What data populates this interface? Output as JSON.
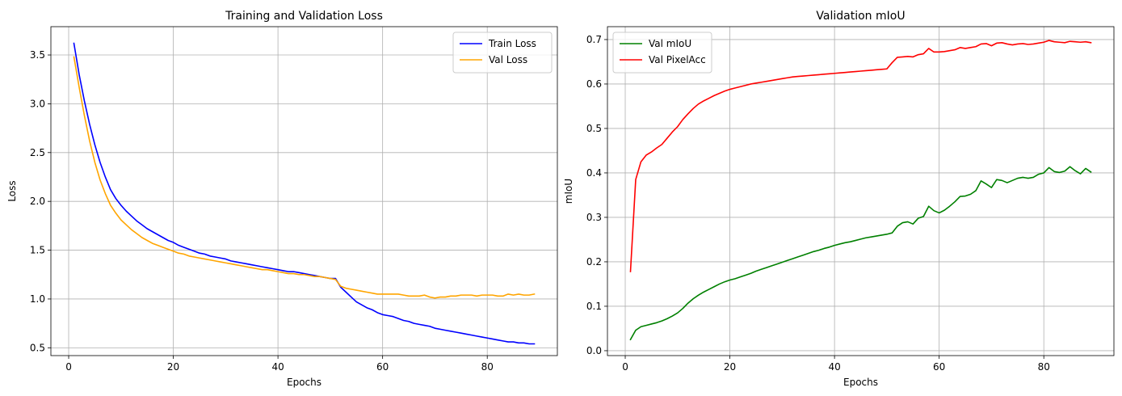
{
  "chart_data": [
    {
      "type": "line",
      "title": "Training and Validation Loss",
      "xlabel": "Epochs",
      "ylabel": "Loss",
      "xlim": [
        -3.4,
        93.4
      ],
      "ylim": [
        0.42,
        3.79
      ],
      "xticks": [
        0,
        20,
        40,
        60,
        80
      ],
      "yticks": [
        0.5,
        1.0,
        1.5,
        2.0,
        2.5,
        3.0,
        3.5
      ],
      "ytick_format": 1,
      "grid": true,
      "legend": "top-right",
      "x": [
        1,
        2,
        3,
        4,
        5,
        6,
        7,
        8,
        9,
        10,
        11,
        12,
        13,
        14,
        15,
        16,
        17,
        18,
        19,
        20,
        21,
        22,
        23,
        24,
        25,
        26,
        27,
        28,
        29,
        30,
        31,
        32,
        33,
        34,
        35,
        36,
        37,
        38,
        39,
        40,
        41,
        42,
        43,
        44,
        45,
        46,
        47,
        48,
        49,
        50,
        51,
        52,
        53,
        54,
        55,
        56,
        57,
        58,
        59,
        60,
        61,
        62,
        63,
        64,
        65,
        66,
        67,
        68,
        69,
        70,
        71,
        72,
        73,
        74,
        75,
        76,
        77,
        78,
        79,
        80,
        81,
        82,
        83,
        84,
        85,
        86,
        87,
        88,
        89
      ],
      "series": [
        {
          "name": "Train Loss",
          "color": "#0000ff",
          "values": [
            3.62,
            3.3,
            3.03,
            2.79,
            2.58,
            2.4,
            2.25,
            2.12,
            2.03,
            1.96,
            1.9,
            1.85,
            1.8,
            1.76,
            1.72,
            1.69,
            1.66,
            1.63,
            1.6,
            1.58,
            1.55,
            1.53,
            1.51,
            1.49,
            1.47,
            1.46,
            1.44,
            1.43,
            1.42,
            1.41,
            1.39,
            1.38,
            1.37,
            1.36,
            1.35,
            1.34,
            1.33,
            1.32,
            1.31,
            1.3,
            1.29,
            1.28,
            1.28,
            1.27,
            1.26,
            1.25,
            1.24,
            1.23,
            1.22,
            1.21,
            1.21,
            1.12,
            1.07,
            1.02,
            0.97,
            0.94,
            0.91,
            0.89,
            0.86,
            0.84,
            0.83,
            0.82,
            0.8,
            0.78,
            0.77,
            0.75,
            0.74,
            0.73,
            0.72,
            0.7,
            0.69,
            0.68,
            0.67,
            0.66,
            0.65,
            0.64,
            0.63,
            0.62,
            0.61,
            0.6,
            0.59,
            0.58,
            0.57,
            0.56,
            0.56,
            0.55,
            0.55,
            0.54,
            0.54
          ]
        },
        {
          "name": "Val Loss",
          "color": "#ffa500",
          "values": [
            3.48,
            3.17,
            2.88,
            2.62,
            2.4,
            2.22,
            2.08,
            1.96,
            1.88,
            1.81,
            1.76,
            1.71,
            1.67,
            1.63,
            1.6,
            1.57,
            1.55,
            1.53,
            1.51,
            1.49,
            1.47,
            1.46,
            1.44,
            1.43,
            1.42,
            1.41,
            1.4,
            1.39,
            1.38,
            1.37,
            1.36,
            1.35,
            1.34,
            1.33,
            1.32,
            1.31,
            1.3,
            1.3,
            1.29,
            1.28,
            1.27,
            1.26,
            1.26,
            1.25,
            1.25,
            1.24,
            1.23,
            1.23,
            1.22,
            1.21,
            1.2,
            1.13,
            1.11,
            1.1,
            1.09,
            1.08,
            1.07,
            1.06,
            1.05,
            1.05,
            1.05,
            1.05,
            1.05,
            1.04,
            1.03,
            1.03,
            1.03,
            1.04,
            1.02,
            1.01,
            1.02,
            1.02,
            1.03,
            1.03,
            1.04,
            1.04,
            1.04,
            1.03,
            1.04,
            1.04,
            1.04,
            1.03,
            1.03,
            1.05,
            1.04,
            1.05,
            1.04,
            1.04,
            1.05
          ]
        }
      ]
    },
    {
      "type": "line",
      "title": "Validation mIoU",
      "xlabel": "Epochs",
      "ylabel": "mIoU",
      "xlim": [
        -3.4,
        93.4
      ],
      "ylim": [
        -0.011,
        0.729
      ],
      "xticks": [
        0,
        20,
        40,
        60,
        80
      ],
      "yticks": [
        0.0,
        0.1,
        0.2,
        0.3,
        0.4,
        0.5,
        0.6,
        0.7
      ],
      "ytick_format": 1,
      "grid": true,
      "legend": "top-left",
      "x": [
        1,
        2,
        3,
        4,
        5,
        6,
        7,
        8,
        9,
        10,
        11,
        12,
        13,
        14,
        15,
        16,
        17,
        18,
        19,
        20,
        21,
        22,
        23,
        24,
        25,
        26,
        27,
        28,
        29,
        30,
        31,
        32,
        33,
        34,
        35,
        36,
        37,
        38,
        39,
        40,
        41,
        42,
        43,
        44,
        45,
        46,
        47,
        48,
        49,
        50,
        51,
        52,
        53,
        54,
        55,
        56,
        57,
        58,
        59,
        60,
        61,
        62,
        63,
        64,
        65,
        66,
        67,
        68,
        69,
        70,
        71,
        72,
        73,
        74,
        75,
        76,
        77,
        78,
        79,
        80,
        81,
        82,
        83,
        84,
        85,
        86,
        87,
        88,
        89
      ],
      "series": [
        {
          "name": "Val mIoU",
          "color": "#008000",
          "values": [
            0.025,
            0.046,
            0.054,
            0.057,
            0.06,
            0.063,
            0.067,
            0.072,
            0.078,
            0.085,
            0.095,
            0.107,
            0.117,
            0.125,
            0.132,
            0.138,
            0.144,
            0.15,
            0.155,
            0.159,
            0.162,
            0.166,
            0.17,
            0.174,
            0.179,
            0.183,
            0.187,
            0.191,
            0.195,
            0.199,
            0.203,
            0.207,
            0.211,
            0.215,
            0.219,
            0.223,
            0.226,
            0.23,
            0.233,
            0.237,
            0.24,
            0.243,
            0.245,
            0.248,
            0.251,
            0.254,
            0.256,
            0.258,
            0.26,
            0.262,
            0.265,
            0.28,
            0.288,
            0.29,
            0.285,
            0.298,
            0.302,
            0.325,
            0.315,
            0.31,
            0.316,
            0.325,
            0.335,
            0.347,
            0.348,
            0.352,
            0.36,
            0.382,
            0.375,
            0.367,
            0.385,
            0.383,
            0.378,
            0.383,
            0.388,
            0.39,
            0.388,
            0.39,
            0.397,
            0.4,
            0.412,
            0.403,
            0.401,
            0.404,
            0.414,
            0.405,
            0.398,
            0.41,
            0.402
          ]
        },
        {
          "name": "Val PixelAcc",
          "color": "#ff0000",
          "values": [
            0.178,
            0.385,
            0.425,
            0.44,
            0.447,
            0.456,
            0.464,
            0.478,
            0.492,
            0.504,
            0.52,
            0.533,
            0.545,
            0.555,
            0.562,
            0.568,
            0.574,
            0.579,
            0.584,
            0.588,
            0.591,
            0.594,
            0.597,
            0.6,
            0.602,
            0.604,
            0.606,
            0.608,
            0.61,
            0.612,
            0.614,
            0.616,
            0.617,
            0.618,
            0.619,
            0.62,
            0.621,
            0.622,
            0.623,
            0.624,
            0.625,
            0.626,
            0.627,
            0.628,
            0.629,
            0.63,
            0.631,
            0.632,
            0.633,
            0.634,
            0.648,
            0.66,
            0.661,
            0.662,
            0.661,
            0.666,
            0.668,
            0.68,
            0.672,
            0.672,
            0.673,
            0.675,
            0.677,
            0.682,
            0.68,
            0.682,
            0.684,
            0.69,
            0.691,
            0.686,
            0.692,
            0.693,
            0.69,
            0.688,
            0.69,
            0.691,
            0.689,
            0.69,
            0.692,
            0.694,
            0.698,
            0.695,
            0.694,
            0.693,
            0.696,
            0.695,
            0.694,
            0.695,
            0.693
          ]
        }
      ]
    }
  ]
}
